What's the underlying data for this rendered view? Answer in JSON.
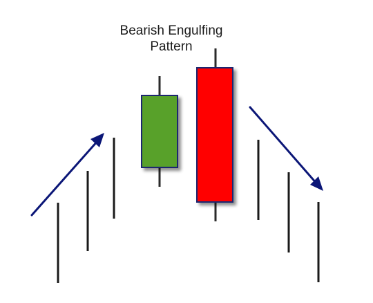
{
  "diagram": {
    "title_lines": [
      "Bearish Engulfing",
      "Pattern"
    ],
    "colors": {
      "background": "#ffffff",
      "bullish_body": "#58a12a",
      "bearish_body": "#ff0000",
      "body_outline": "#1c2570",
      "wick": "#2a2a2a",
      "context_bars": "#1a1a1a",
      "trend_arrows": "#0b1677",
      "shadow": "#b8b8b8"
    },
    "trend_up_arrow": {
      "direction": "up-right",
      "icon": "arrow-up-right-icon"
    },
    "trend_down_arrow": {
      "direction": "down-right",
      "icon": "arrow-down-right-icon"
    },
    "candles": [
      {
        "name": "bullish-candle",
        "type": "bullish"
      },
      {
        "name": "bearish-engulfing-candle",
        "type": "bearish"
      }
    ]
  }
}
